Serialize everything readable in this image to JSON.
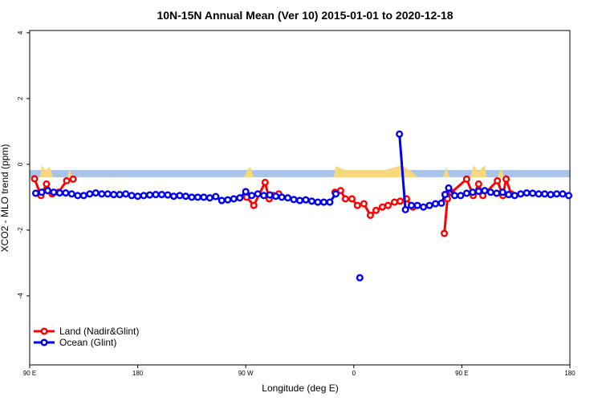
{
  "chart_data": {
    "type": "line",
    "title": "10N-15N Annual Mean (Ver 10)   2015-01-01 to 2020-12-18",
    "x_label": "Longitude (deg E)",
    "y_label": "XCO2 - MLO trend (ppm)",
    "xlim": [
      90,
      540
    ],
    "ylim": [
      -6.1,
      4.07
    ],
    "xticks": [
      {
        "value": 90,
        "label": "90 E"
      },
      180,
      {
        "value": 270,
        "label": "90 W"
      },
      {
        "value": 360,
        "label": "0"
      },
      {
        "value": 450,
        "label": "90 E"
      },
      {
        "value": 540,
        "label": "180"
      }
    ],
    "yticks": [
      4,
      2,
      0,
      -2,
      -4
    ],
    "legend": "bottomleft",
    "series": [
      {
        "name": "Land (Nadir&Glint)",
        "color": "#ff0000",
        "x": [
          94,
          99.4,
          104,
          108.7,
          114,
          120.8,
          126.2,
          200,
          270.7,
          276.7,
          286.1,
          289.5,
          292.8,
          297.5,
          320,
          344.3,
          349,
          353,
          358.4,
          363,
          368.4,
          373.8,
          378.5,
          383.8,
          388.5,
          393.9,
          398.6,
          403.9,
          409.3,
          420,
          435.4,
          438,
          441.4,
          454,
          459.5,
          464,
          467.5,
          479.6,
          484.2,
          486.9,
          491
        ],
        "values": [
          -0.44,
          -0.95,
          -0.6,
          -0.9,
          -0.85,
          -0.5,
          -0.45,
          null,
          -1.0,
          -1.25,
          -0.55,
          -1.05,
          -0.95,
          -0.9,
          null,
          -0.85,
          -0.8,
          -1.05,
          -1.05,
          -1.25,
          -1.2,
          -1.55,
          -1.4,
          -1.3,
          -1.25,
          -1.15,
          -1.12,
          -1.05,
          -1.3,
          null,
          -2.1,
          -1.05,
          -0.85,
          -0.45,
          -0.95,
          -0.6,
          -0.95,
          -0.5,
          -0.95,
          -0.45,
          -0.9
        ]
      },
      {
        "name": "Ocean (Glint)",
        "color": "#0000ee",
        "x": [
          95,
          100,
          105,
          110,
          115,
          120,
          125,
          130,
          135,
          140,
          145,
          150,
          155,
          160,
          165,
          170,
          175,
          180,
          185,
          190,
          195,
          200,
          205,
          210,
          215,
          220,
          225,
          230,
          235,
          240,
          245,
          250,
          255,
          260,
          265,
          270,
          275,
          280,
          285,
          290,
          295,
          300,
          305,
          310,
          315,
          320,
          325,
          330,
          335,
          340,
          345,
          355,
          365,
          375,
          398,
          403,
          408,
          413,
          418,
          423,
          428,
          433,
          436,
          439,
          444,
          449,
          454,
          459,
          464,
          469,
          474,
          479,
          484,
          489,
          494,
          499,
          504,
          509,
          514,
          519,
          524,
          529,
          534,
          539
        ],
        "values": [
          -0.88,
          -0.85,
          -0.8,
          -0.85,
          -0.87,
          -0.87,
          -0.9,
          -0.95,
          -0.95,
          -0.9,
          -0.87,
          -0.9,
          -0.9,
          -0.92,
          -0.92,
          -0.9,
          -0.95,
          -0.97,
          -0.95,
          -0.93,
          -0.92,
          -0.92,
          -0.93,
          -0.97,
          -0.95,
          -0.97,
          -1.0,
          -1.0,
          -1.0,
          -1.02,
          -0.98,
          -1.1,
          -1.08,
          -1.05,
          -1.02,
          -0.83,
          -0.95,
          -0.9,
          -0.95,
          -0.93,
          -0.97,
          -1.0,
          -1.02,
          -1.07,
          -1.1,
          -1.08,
          -1.12,
          -1.15,
          -1.15,
          -1.15,
          -0.9,
          null,
          -3.45,
          null,
          0.92,
          -1.38,
          -1.25,
          -1.25,
          -1.3,
          -1.25,
          -1.2,
          -1.18,
          -0.92,
          -0.72,
          -0.95,
          -0.95,
          -0.88,
          -0.85,
          -0.82,
          -0.8,
          -0.85,
          -0.88,
          -0.85,
          -0.92,
          -0.95,
          -0.9,
          -0.87,
          -0.88,
          -0.9,
          -0.9,
          -0.92,
          -0.9,
          -0.9,
          -0.95
        ]
      }
    ]
  }
}
